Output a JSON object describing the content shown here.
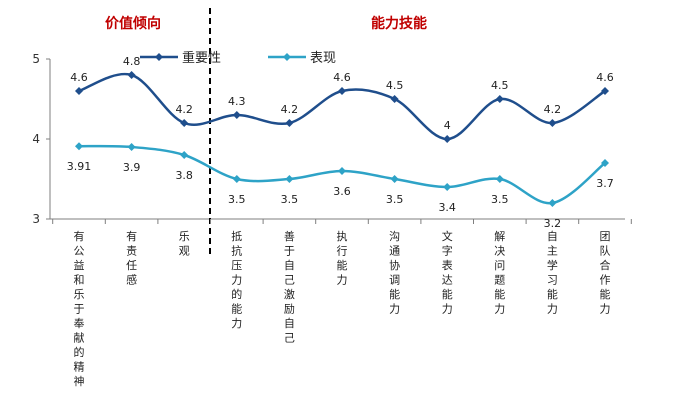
{
  "chart_data": {
    "type": "line",
    "categories": [
      "有公益和乐于奉献的精神",
      "有责任感",
      "乐观",
      "抵抗压力的能力",
      "善于自己激励自己",
      "执行能力",
      "沟通协调能力",
      "文字表达能力",
      "解决问题能力",
      "自主学习能力",
      "团队合作能力"
    ],
    "series": [
      {
        "name": "重要性",
        "color": "#1f4e8c",
        "values": [
          4.6,
          4.8,
          4.2,
          4.3,
          4.2,
          4.6,
          4.5,
          4.0,
          4.5,
          4.2,
          4.6
        ],
        "labels": [
          "4.6",
          "4.8",
          "4.2",
          "4.3",
          "4.2",
          "4.6",
          "4.5",
          "4",
          "4.5",
          "4.2",
          "4.6"
        ]
      },
      {
        "name": "表现",
        "color": "#2ea3c7",
        "values": [
          3.91,
          3.9,
          3.8,
          3.5,
          3.5,
          3.6,
          3.5,
          3.4,
          3.5,
          3.2,
          3.7
        ],
        "labels": [
          "3.91",
          "3.9",
          "3.8",
          "3.5",
          "3.5",
          "3.6",
          "3.5",
          "3.4",
          "3.5",
          "3.2",
          "3.7"
        ]
      }
    ],
    "ylim": [
      3,
      5
    ],
    "yticks": [
      "3",
      "4",
      "5"
    ],
    "groups": [
      "价值倾向",
      "能力技能"
    ],
    "grid": false,
    "legend_position": "top-center"
  }
}
